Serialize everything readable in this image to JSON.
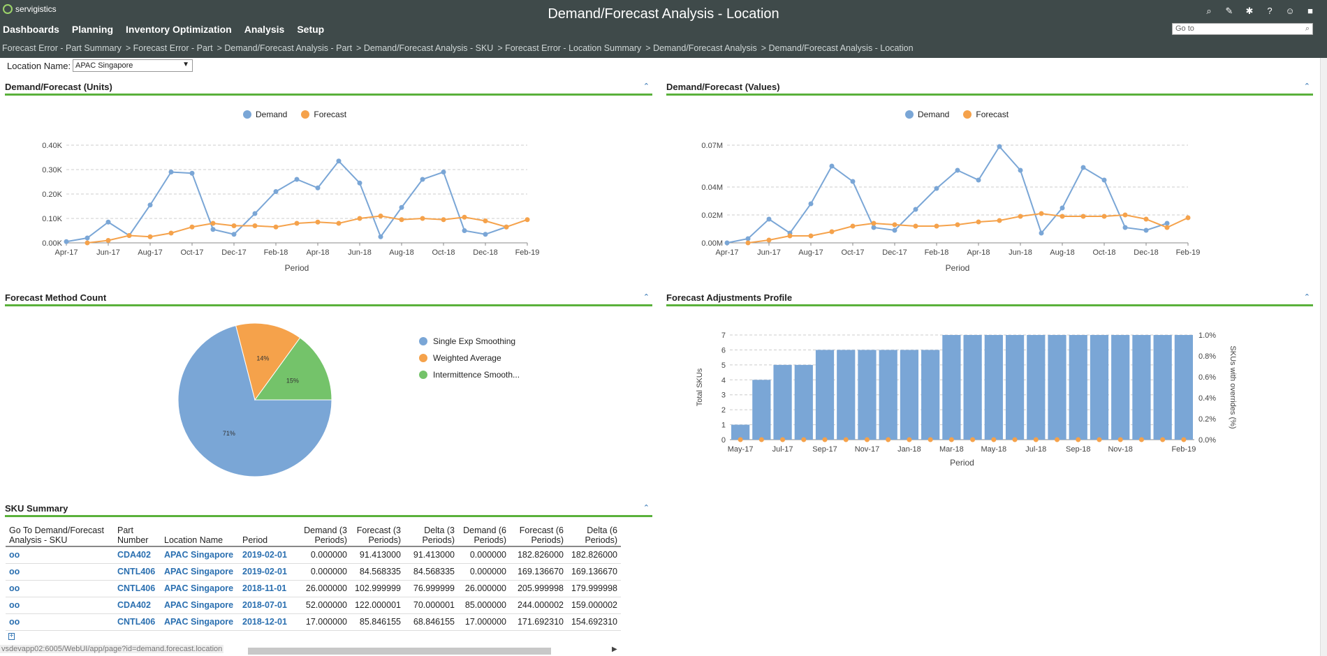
{
  "app": {
    "logo_text": "servigistics",
    "title": "Demand/Forecast Analysis - Location",
    "menu": [
      "Dashboards",
      "Planning",
      "Inventory Optimization",
      "Analysis",
      "Setup"
    ],
    "goto_placeholder": "Go to",
    "top_icons": [
      "search-icon",
      "wrench-icon",
      "gear-icon",
      "help-icon",
      "user-icon",
      "lock-icon"
    ],
    "breadcrumbs": [
      "Forecast Error - Part Summary",
      "> Forecast Error - Part",
      "> Demand/Forecast Analysis - Part",
      "> Demand/Forecast Analysis - SKU",
      "> Forecast Error - Location Summary",
      "> Demand/Forecast Analysis",
      "> Demand/Forecast Analysis - Location"
    ]
  },
  "filter": {
    "label": "Location Name:",
    "value": "APAC Singapore"
  },
  "panels": {
    "units": "Demand/Forecast (Units)",
    "values": "Demand/Forecast (Values)",
    "method": "Forecast Method Count",
    "adjust": "Forecast Adjustments Profile",
    "sku": "SKU Summary"
  },
  "colors": {
    "demand": "#7aa6d6",
    "forecast": "#f5a24b",
    "intermittence": "#74c36a",
    "accent": "#5ab13b",
    "header_bg": "#3f4a4a"
  },
  "chart_data": [
    {
      "type": "line",
      "title": "Demand/Forecast (Units)",
      "xlabel": "Period",
      "x": [
        "Apr-17",
        "May-17",
        "Jun-17",
        "Jul-17",
        "Aug-17",
        "Sep-17",
        "Oct-17",
        "Nov-17",
        "Dec-17",
        "Jan-18",
        "Feb-18",
        "Mar-18",
        "Apr-18",
        "May-18",
        "Jun-18",
        "Jul-18",
        "Aug-18",
        "Sep-18",
        "Oct-18",
        "Nov-18",
        "Dec-18",
        "Jan-19",
        "Feb-19"
      ],
      "xticks": [
        "Apr-17",
        "Jun-17",
        "Aug-17",
        "Oct-17",
        "Dec-17",
        "Feb-18",
        "Apr-18",
        "Jun-18",
        "Aug-18",
        "Oct-18",
        "Dec-18",
        "Feb-19"
      ],
      "yticks": [
        "0.00K",
        "0.10K",
        "0.20K",
        "0.30K",
        "0.40K"
      ],
      "ylim": [
        0,
        0.4
      ],
      "series": [
        {
          "name": "Demand",
          "values": [
            0.005,
            0.02,
            0.085,
            0.03,
            0.155,
            0.29,
            0.285,
            0.055,
            0.035,
            0.12,
            0.21,
            0.26,
            0.225,
            0.335,
            0.245,
            0.025,
            0.145,
            0.26,
            0.29,
            0.05,
            0.035,
            0.065,
            null
          ]
        },
        {
          "name": "Forecast",
          "values": [
            null,
            0.0,
            0.01,
            0.03,
            0.025,
            0.04,
            0.065,
            0.08,
            0.07,
            0.07,
            0.065,
            0.08,
            0.085,
            0.08,
            0.1,
            0.11,
            0.095,
            0.1,
            0.095,
            0.105,
            0.09,
            0.065,
            0.095
          ]
        }
      ]
    },
    {
      "type": "line",
      "title": "Demand/Forecast (Values)",
      "xlabel": "Period",
      "x": [
        "Apr-17",
        "May-17",
        "Jun-17",
        "Jul-17",
        "Aug-17",
        "Sep-17",
        "Oct-17",
        "Nov-17",
        "Dec-17",
        "Jan-18",
        "Feb-18",
        "Mar-18",
        "Apr-18",
        "May-18",
        "Jun-18",
        "Jul-18",
        "Aug-18",
        "Sep-18",
        "Oct-18",
        "Nov-18",
        "Dec-18",
        "Jan-19",
        "Feb-19"
      ],
      "xticks": [
        "Apr-17",
        "Jun-17",
        "Aug-17",
        "Oct-17",
        "Dec-17",
        "Feb-18",
        "Apr-18",
        "Jun-18",
        "Aug-18",
        "Oct-18",
        "Dec-18",
        "Feb-19"
      ],
      "yticks": [
        "0.00M",
        "0.02M",
        "0.04M",
        "0.07M"
      ],
      "ylim": [
        0,
        0.07
      ],
      "series": [
        {
          "name": "Demand",
          "values": [
            0.0,
            0.003,
            0.017,
            0.007,
            0.028,
            0.055,
            0.044,
            0.011,
            0.009,
            0.024,
            0.039,
            0.052,
            0.045,
            0.069,
            0.052,
            0.007,
            0.025,
            0.054,
            0.045,
            0.011,
            0.009,
            0.014,
            null
          ]
        },
        {
          "name": "Forecast",
          "values": [
            null,
            0.0,
            0.002,
            0.005,
            0.005,
            0.008,
            0.012,
            0.014,
            0.013,
            0.012,
            0.012,
            0.013,
            0.015,
            0.016,
            0.019,
            0.021,
            0.019,
            0.019,
            0.019,
            0.02,
            0.017,
            0.011,
            0.018
          ]
        }
      ]
    },
    {
      "type": "pie",
      "title": "Forecast Method Count",
      "labels": [
        "Single Exp Smoothing",
        "Weighted Average",
        "Intermittence Smooth..."
      ],
      "values": [
        71,
        14,
        15
      ],
      "data_labels": [
        "71%",
        "14%",
        "15%"
      ]
    },
    {
      "type": "bar",
      "title": "Forecast Adjustments Profile",
      "xlabel": "Period",
      "ylabel": "Total SKUs",
      "y2label": "SKUs with overrides (%)",
      "x": [
        "May-17",
        "Jun-17",
        "Jul-17",
        "Aug-17",
        "Sep-17",
        "Oct-17",
        "Nov-17",
        "Dec-17",
        "Jan-18",
        "Feb-18",
        "Mar-18",
        "Apr-18",
        "May-18",
        "Jun-18",
        "Jul-18",
        "Aug-18",
        "Sep-18",
        "Oct-18",
        "Nov-18",
        "Dec-18",
        "Jan-19",
        "Feb-19"
      ],
      "xticks": [
        "May-17",
        "Jul-17",
        "Sep-17",
        "Nov-17",
        "Jan-18",
        "Mar-18",
        "May-18",
        "Jul-18",
        "Sep-18",
        "Nov-18",
        "Feb-19"
      ],
      "yticks": [
        "0",
        "1",
        "2",
        "3",
        "4",
        "5",
        "6",
        "7"
      ],
      "y2ticks": [
        "0.0%",
        "0.2%",
        "0.4%",
        "0.6%",
        "0.8%",
        "1.0%"
      ],
      "ylim": [
        0,
        7
      ],
      "y2lim": [
        0,
        1.0
      ],
      "series": [
        {
          "name": "Total SKUs",
          "values": [
            1,
            4,
            5,
            5,
            6,
            6,
            6,
            6,
            6,
            6,
            7,
            7,
            7,
            7,
            7,
            7,
            7,
            7,
            7,
            7,
            7,
            7
          ]
        },
        {
          "name": "SKUs with overrides (%)",
          "values": [
            0,
            0,
            0,
            0,
            0,
            0,
            0,
            0,
            0,
            0,
            0,
            0,
            0,
            0,
            0,
            0,
            0,
            0,
            0,
            0,
            0,
            0
          ]
        }
      ]
    }
  ],
  "sku_table": {
    "headers": [
      "Go To Demand/Forecast Analysis - SKU",
      "Part Number",
      "Location Name",
      "Period",
      "Demand (3 Periods)",
      "Forecast (3 Periods)",
      "Delta (3 Periods)",
      "Demand (6 Periods)",
      "Forecast (6 Periods)",
      "Delta (6 Periods)"
    ],
    "rows": [
      [
        "oo",
        "CDA402",
        "APAC Singapore",
        "2019-02-01",
        "0.000000",
        "91.413000",
        "91.413000",
        "0.000000",
        "182.826000",
        "182.826000"
      ],
      [
        "oo",
        "CNTL406",
        "APAC Singapore",
        "2019-02-01",
        "0.000000",
        "84.568335",
        "84.568335",
        "0.000000",
        "169.136670",
        "169.136670"
      ],
      [
        "oo",
        "CNTL406",
        "APAC Singapore",
        "2018-11-01",
        "26.000000",
        "102.999999",
        "76.999999",
        "26.000000",
        "205.999998",
        "179.999998"
      ],
      [
        "oo",
        "CDA402",
        "APAC Singapore",
        "2018-07-01",
        "52.000000",
        "122.000001",
        "70.000001",
        "85.000000",
        "244.000002",
        "159.000002"
      ],
      [
        "oo",
        "CNTL406",
        "APAC Singapore",
        "2018-12-01",
        "17.000000",
        "85.846155",
        "68.846155",
        "17.000000",
        "171.692310",
        "154.692310"
      ]
    ]
  },
  "status_url": "vsdevapp02:6005/WebUI/app/page?id=demand.forecast.location"
}
